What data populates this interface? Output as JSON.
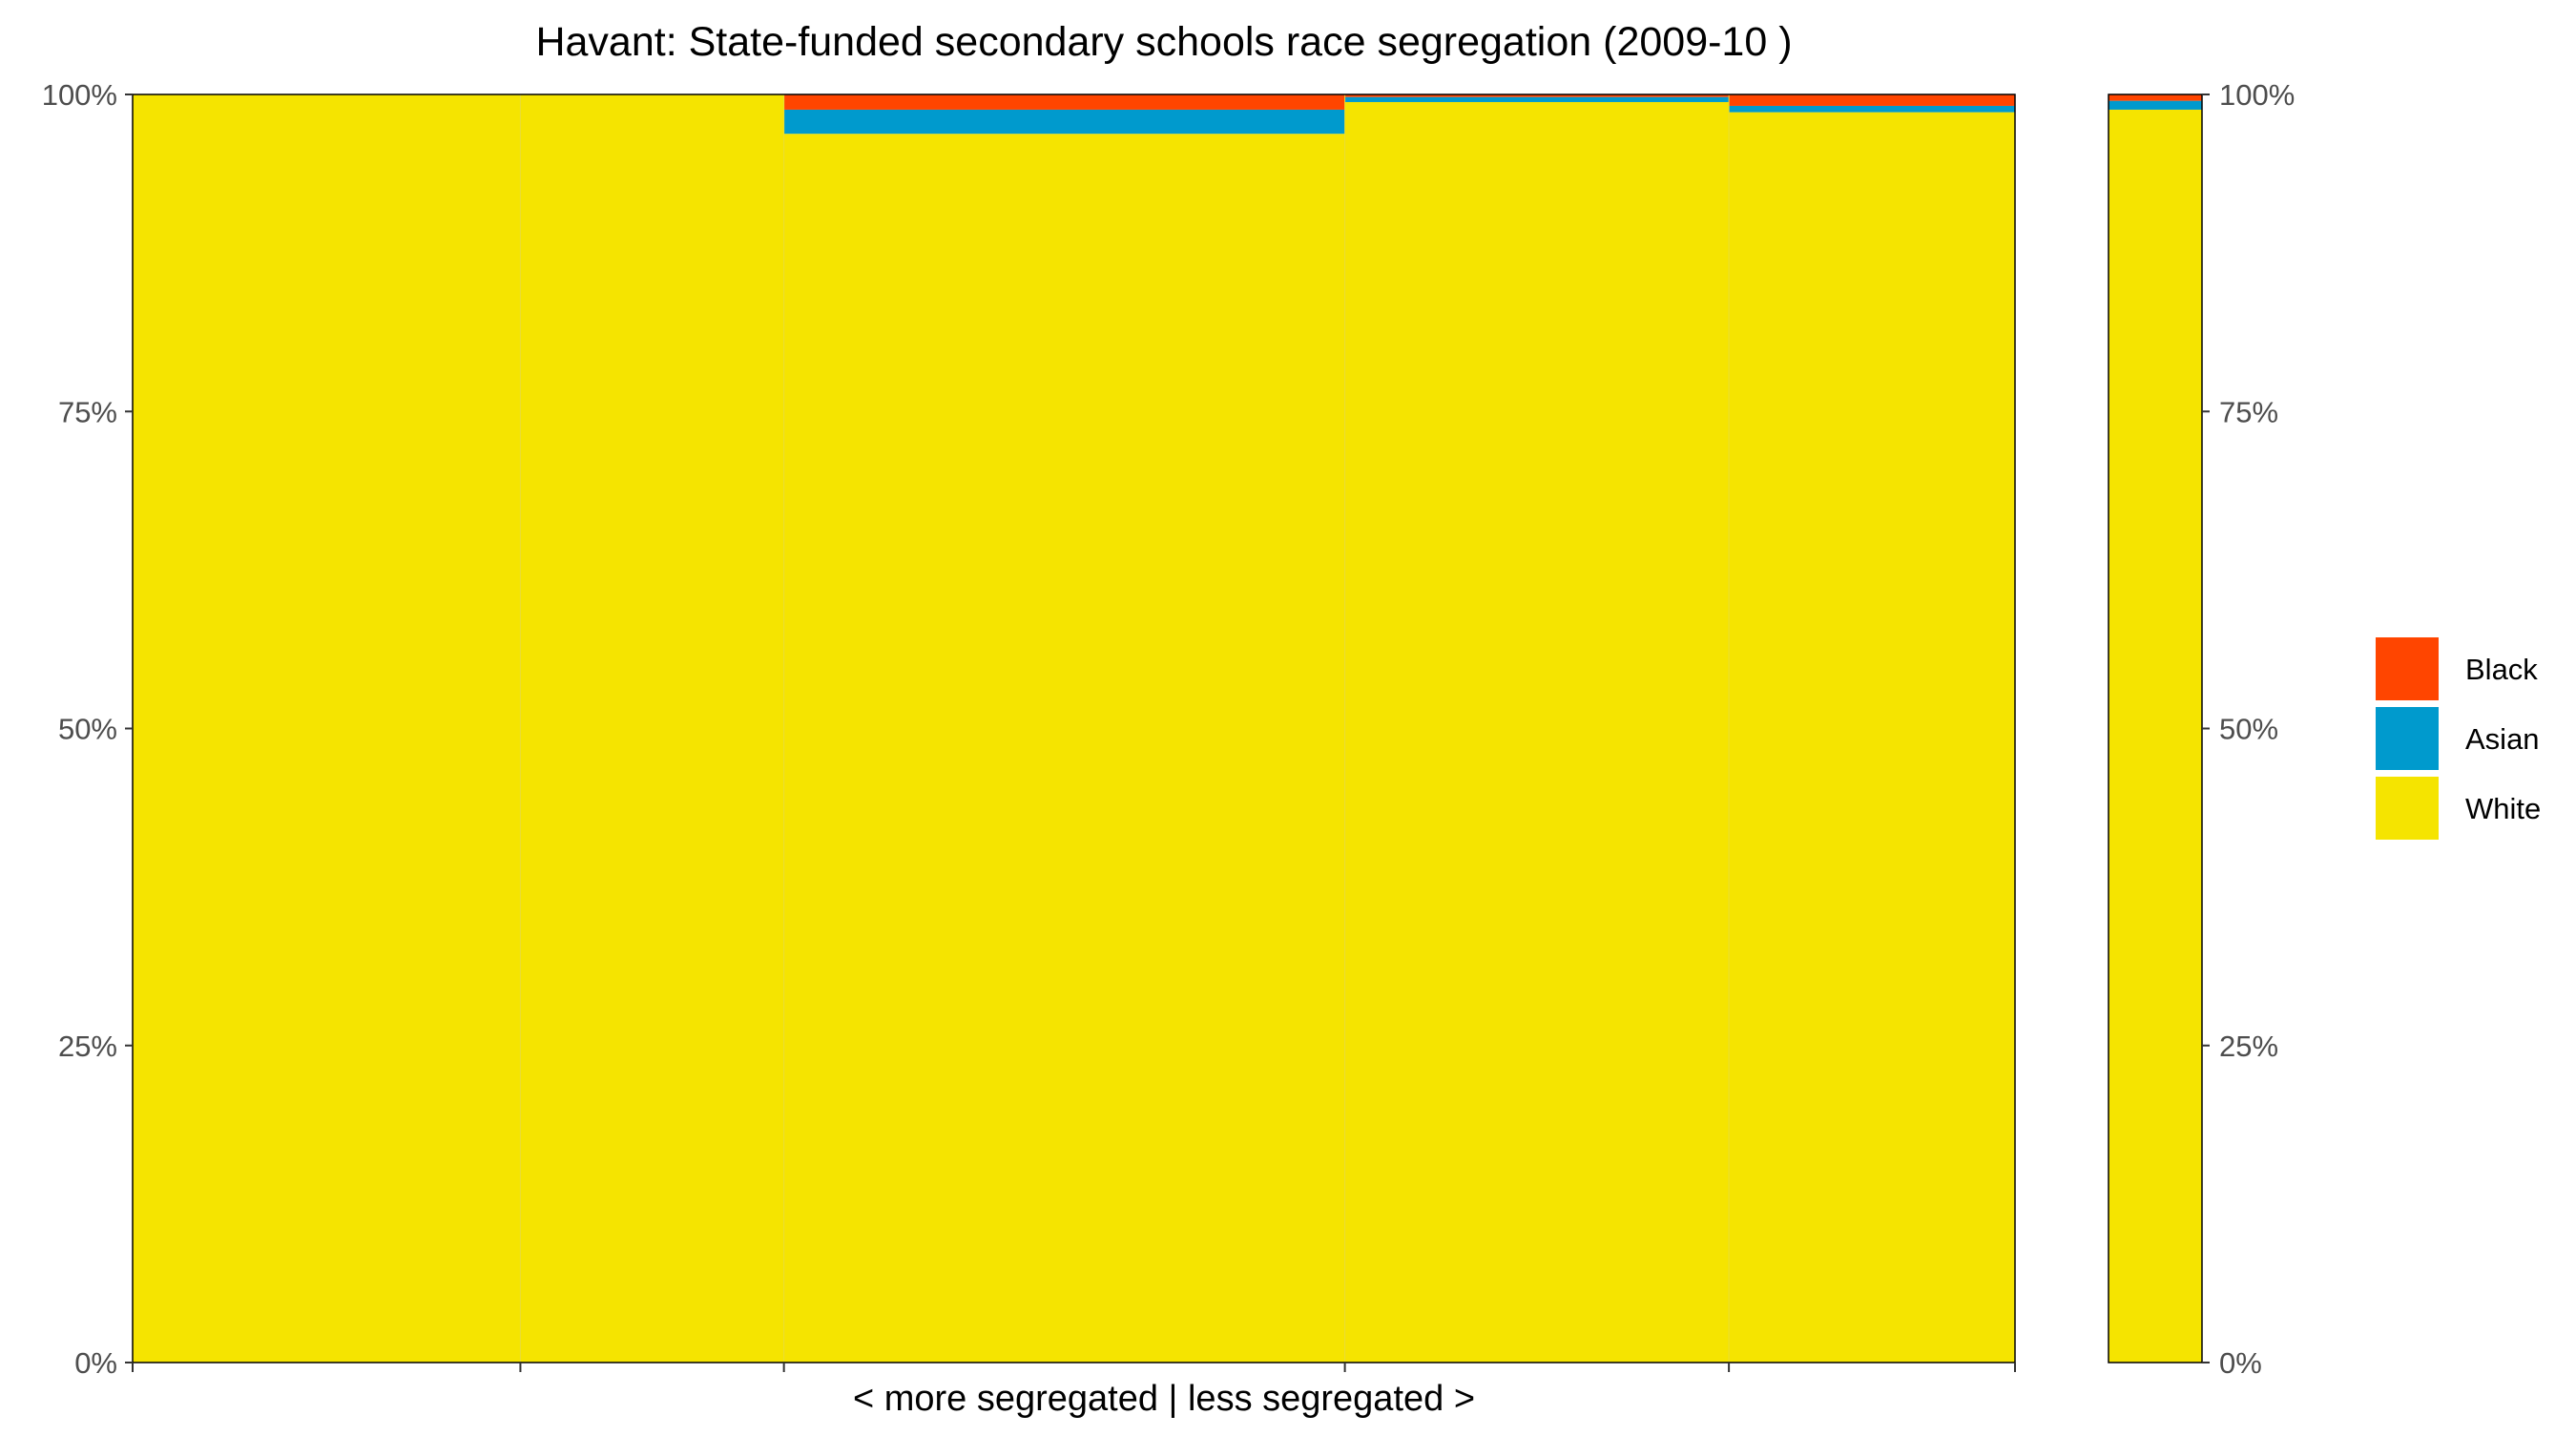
{
  "chart_data": {
    "type": "bar",
    "subtype": "stacked-marimekko",
    "title": "Havant: State-funded secondary schools race segregation (2009-10 )",
    "xlabel": "< more segregated | less segregated >",
    "ylabel": "",
    "ylim": [
      0,
      100
    ],
    "y_ticks": [
      "0%",
      "25%",
      "50%",
      "75%",
      "100%"
    ],
    "y_tick_values": [
      0,
      25,
      50,
      75,
      100
    ],
    "y_axis_secondary": true,
    "grid": false,
    "legend_position": "right",
    "series_order": [
      "White",
      "Asian",
      "Black"
    ],
    "legend": [
      {
        "name": "Black",
        "color": "#FF4500"
      },
      {
        "name": "Asian",
        "color": "#009ACD"
      },
      {
        "name": "White",
        "color": "#F5E400"
      }
    ],
    "x_ticks": [
      0,
      20.6,
      34.6,
      64.4,
      84.8,
      100
    ],
    "schools": [
      {
        "width": 20.6,
        "White": 100.0,
        "Asian": 0.0,
        "Black": 0.0
      },
      {
        "width": 14.0,
        "White": 100.0,
        "Asian": 0.0,
        "Black": 0.0
      },
      {
        "width": 29.8,
        "White": 96.9,
        "Asian": 1.9,
        "Black": 1.2
      },
      {
        "width": 20.4,
        "White": 99.4,
        "Asian": 0.4,
        "Black": 0.2
      },
      {
        "width": 15.2,
        "White": 98.6,
        "Asian": 0.5,
        "Black": 0.9
      }
    ],
    "summary_bar": {
      "White": 98.8,
      "Asian": 0.7,
      "Black": 0.5
    }
  }
}
